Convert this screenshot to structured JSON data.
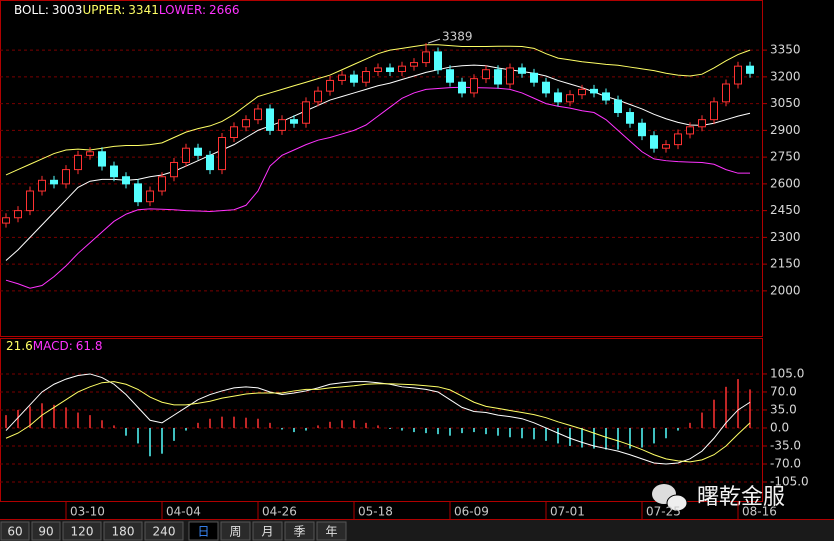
{
  "chart_data": [
    {
      "type": "candlestick",
      "categories": [
        null,
        null,
        null,
        null,
        null,
        "03-10",
        null,
        null,
        null,
        null,
        null,
        null,
        null,
        "04-04",
        null,
        null,
        null,
        null,
        null,
        null,
        null,
        "04-26",
        null,
        null,
        null,
        null,
        null,
        null,
        null,
        "05-18",
        null,
        null,
        null,
        null,
        null,
        null,
        null,
        "06-09",
        null,
        null,
        null,
        null,
        null,
        null,
        null,
        "07-01",
        null,
        null,
        null,
        null,
        null,
        null,
        null,
        "07-25",
        null,
        null,
        null,
        null,
        null,
        null,
        null,
        "08-16",
        null
      ],
      "open": [
        2380,
        2410,
        2450,
        2560,
        2620,
        2600,
        2680,
        2760,
        2780,
        2700,
        2640,
        2600,
        2500,
        2560,
        2640,
        2720,
        2800,
        2760,
        2680,
        2860,
        2920,
        2960,
        3020,
        2900,
        2960,
        2940,
        3060,
        3120,
        3180,
        3210,
        3170,
        3230,
        3250,
        3230,
        3260,
        3280,
        3340,
        3240,
        3170,
        3110,
        3190,
        3240,
        3160,
        3250,
        3220,
        3170,
        3110,
        3060,
        3100,
        3130,
        3110,
        3070,
        3000,
        2940,
        2870,
        2800,
        2820,
        2880,
        2920,
        2960,
        3060,
        3160,
        3260
      ],
      "high": [
        2435,
        2475,
        2585,
        2645,
        2645,
        2705,
        2785,
        2805,
        2805,
        2725,
        2665,
        2625,
        2585,
        2665,
        2745,
        2825,
        2825,
        2785,
        2885,
        2945,
        2985,
        3045,
        3045,
        2985,
        2985,
        3085,
        3145,
        3205,
        3235,
        3235,
        3255,
        3275,
        3275,
        3285,
        3305,
        3389,
        3365,
        3265,
        3195,
        3215,
        3265,
        3265,
        3275,
        3275,
        3245,
        3195,
        3135,
        3125,
        3155,
        3155,
        3135,
        3095,
        3025,
        2965,
        2895,
        2845,
        2905,
        2945,
        2985,
        3085,
        3185,
        3285,
        3285
      ],
      "low": [
        2355,
        2385,
        2425,
        2535,
        2575,
        2575,
        2655,
        2735,
        2675,
        2615,
        2575,
        2475,
        2475,
        2535,
        2615,
        2695,
        2735,
        2655,
        2655,
        2835,
        2895,
        2935,
        2875,
        2875,
        2915,
        2915,
        3035,
        3095,
        3155,
        3145,
        3145,
        3205,
        3205,
        3205,
        3235,
        3255,
        3215,
        3145,
        3085,
        3085,
        3165,
        3135,
        3135,
        3195,
        3145,
        3085,
        3035,
        3035,
        3075,
        3085,
        3045,
        2975,
        2915,
        2845,
        2775,
        2775,
        2795,
        2855,
        2895,
        2935,
        3035,
        3135,
        3195
      ],
      "close": [
        2410,
        2450,
        2560,
        2620,
        2600,
        2680,
        2760,
        2780,
        2700,
        2640,
        2600,
        2500,
        2560,
        2640,
        2720,
        2800,
        2760,
        2680,
        2860,
        2920,
        2960,
        3020,
        2900,
        2960,
        2940,
        3060,
        3120,
        3180,
        3210,
        3170,
        3230,
        3250,
        3230,
        3260,
        3280,
        3340,
        3240,
        3170,
        3110,
        3190,
        3240,
        3160,
        3250,
        3220,
        3170,
        3110,
        3060,
        3100,
        3130,
        3110,
        3070,
        3000,
        2940,
        2870,
        2800,
        2820,
        2880,
        2920,
        2960,
        3060,
        3160,
        3260,
        3220
      ],
      "up_color": "#ff3232",
      "down_color": "#54ffff",
      "series": [
        {
          "name": "BOLL:",
          "readout": 3003,
          "color": "#ffffff",
          "values": [
            2170,
            2230,
            2300,
            2370,
            2440,
            2510,
            2580,
            2615,
            2625,
            2625,
            2620,
            2625,
            2640,
            2650,
            2670,
            2700,
            2730,
            2760,
            2790,
            2820,
            2860,
            2900,
            2925,
            2950,
            2980,
            3010,
            3040,
            3070,
            3090,
            3110,
            3130,
            3150,
            3165,
            3185,
            3205,
            3225,
            3240,
            3255,
            3262,
            3266,
            3262,
            3250,
            3240,
            3230,
            3220,
            3205,
            3180,
            3160,
            3140,
            3115,
            3090,
            3070,
            3045,
            3020,
            2990,
            2965,
            2945,
            2930,
            2928,
            2940,
            2960,
            2980,
            2996
          ]
        },
        {
          "name": "UPPER:",
          "readout": 3341,
          "color": "#ffff66",
          "values": [
            2650,
            2680,
            2710,
            2740,
            2770,
            2790,
            2795,
            2790,
            2800,
            2810,
            2815,
            2815,
            2820,
            2830,
            2860,
            2890,
            2910,
            2925,
            2950,
            2990,
            3040,
            3090,
            3110,
            3130,
            3150,
            3170,
            3190,
            3210,
            3240,
            3270,
            3300,
            3330,
            3350,
            3360,
            3370,
            3380,
            3380,
            3375,
            3370,
            3370,
            3370,
            3372,
            3372,
            3370,
            3360,
            3330,
            3305,
            3295,
            3285,
            3278,
            3270,
            3265,
            3255,
            3245,
            3235,
            3220,
            3210,
            3205,
            3215,
            3250,
            3290,
            3325,
            3350
          ]
        },
        {
          "name": "LOWER:",
          "readout": 2666,
          "color": "#ff33ff",
          "values": [
            2060,
            2040,
            2015,
            2030,
            2080,
            2140,
            2210,
            2270,
            2330,
            2390,
            2430,
            2455,
            2460,
            2458,
            2455,
            2450,
            2448,
            2445,
            2450,
            2455,
            2480,
            2560,
            2700,
            2760,
            2790,
            2820,
            2845,
            2860,
            2880,
            2900,
            2930,
            2980,
            3030,
            3080,
            3110,
            3130,
            3135,
            3140,
            3142,
            3140,
            3138,
            3136,
            3130,
            3110,
            3080,
            3050,
            3035,
            3025,
            3010,
            3000,
            2960,
            2900,
            2840,
            2780,
            2740,
            2730,
            2725,
            2722,
            2720,
            2710,
            2680,
            2660,
            2660
          ]
        }
      ],
      "ylim": [
        1747,
        3631
      ],
      "yticks": [
        3350,
        3200,
        3050,
        2900,
        2750,
        2600,
        2450,
        2300,
        2150,
        2000
      ],
      "grid": true
    },
    {
      "type": "macd",
      "readouts": [
        {
          "value": 21.6,
          "color": "#ffff66"
        },
        {
          "name": "MACD:",
          "value": 61.8,
          "color": "#ff33ff"
        }
      ],
      "values": [
        25,
        35,
        42,
        48,
        45,
        40,
        30,
        25,
        15,
        5,
        -15,
        -30,
        -55,
        -50,
        -25,
        -5,
        10,
        18,
        22,
        22,
        20,
        18,
        10,
        -3,
        -8,
        -5,
        5,
        12,
        15,
        15,
        10,
        5,
        -2,
        -5,
        -8,
        -10,
        -12,
        -15,
        -10,
        -8,
        -12,
        -15,
        -18,
        -20,
        -22,
        -25,
        -30,
        -35,
        -38,
        -40,
        -42,
        -42,
        -40,
        -38,
        -30,
        -20,
        -5,
        10,
        30,
        55,
        80,
        95,
        75
      ],
      "up_color": "#ff3232",
      "down_color": "#54ffff",
      "series": [
        {
          "color": "#ffffff",
          "values": [
            -5,
            20,
            45,
            70,
            85,
            95,
            102,
            105,
            98,
            85,
            65,
            40,
            15,
            10,
            25,
            40,
            55,
            65,
            72,
            78,
            80,
            78,
            70,
            65,
            68,
            72,
            78,
            85,
            88,
            90,
            90,
            88,
            85,
            80,
            78,
            75,
            70,
            55,
            40,
            32,
            30,
            25,
            22,
            18,
            10,
            0,
            -10,
            -20,
            -28,
            -35,
            -40,
            -45,
            -52,
            -60,
            -68,
            -70,
            -68,
            -60,
            -45,
            -20,
            10,
            35,
            50
          ]
        },
        {
          "color": "#ffff66",
          "values": [
            -20,
            -10,
            5,
            25,
            40,
            55,
            70,
            80,
            88,
            90,
            85,
            75,
            60,
            50,
            45,
            45,
            48,
            52,
            58,
            62,
            66,
            68,
            68,
            68,
            72,
            75,
            75,
            78,
            80,
            82,
            85,
            86,
            86,
            85,
            84,
            82,
            80,
            74,
            62,
            50,
            42,
            38,
            34,
            30,
            26,
            20,
            12,
            5,
            -2,
            -10,
            -18,
            -25,
            -33,
            -42,
            -52,
            -60,
            -64,
            -66,
            -62,
            -52,
            -35,
            -12,
            10
          ]
        }
      ],
      "ylim": [
        -140,
        171
      ],
      "yticks": [
        {
          "value": 105,
          "label": "105.0"
        },
        {
          "value": 70,
          "label": "70.0"
        },
        {
          "value": 35,
          "label": "35.0"
        },
        {
          "value": 0,
          "label": "0.0"
        },
        {
          "value": -35,
          "label": "-35.0"
        },
        {
          "value": -70,
          "label": "-70.0"
        },
        {
          "value": -105,
          "label": "-105.0"
        }
      ],
      "grid": true
    }
  ],
  "tabs": [
    "60",
    "90",
    "120",
    "180",
    "240",
    "日",
    "周",
    "月",
    "季",
    "年"
  ],
  "watermark": "曙乾金服"
}
